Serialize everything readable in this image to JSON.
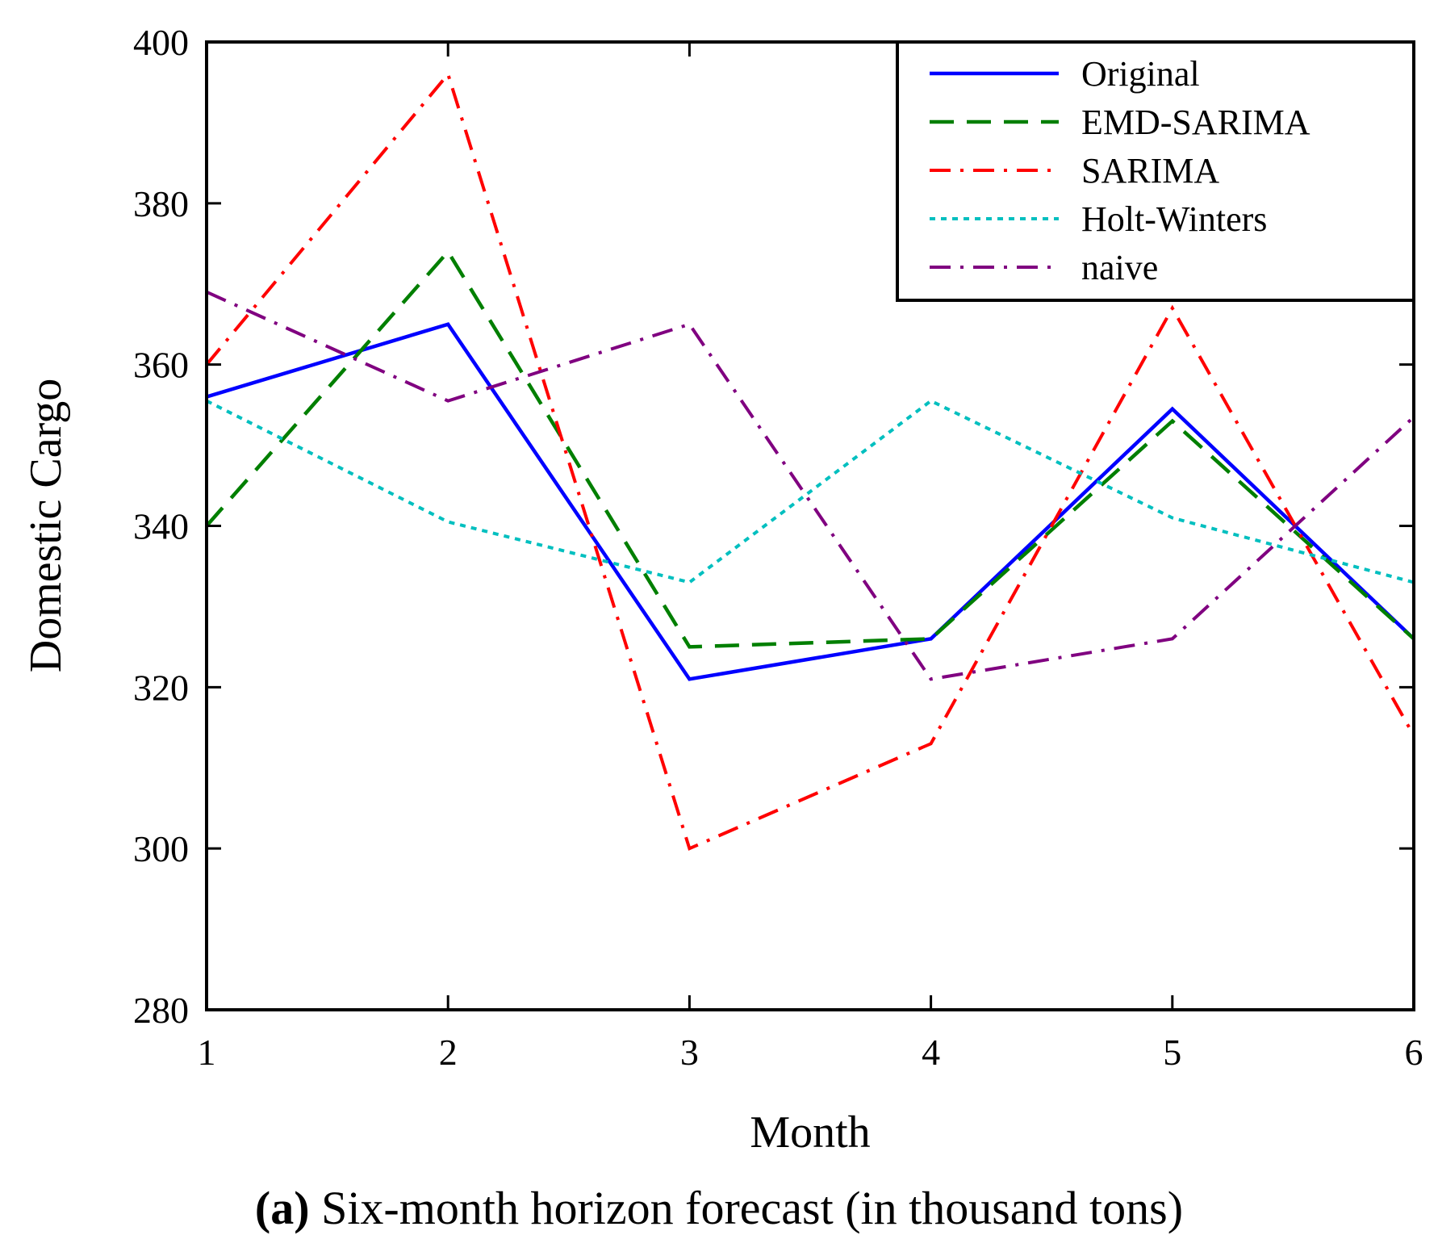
{
  "chart_data": {
    "type": "line",
    "title": "",
    "xlabel": "Month",
    "ylabel": "Domestic Cargo",
    "x": [
      1,
      2,
      3,
      4,
      5,
      6
    ],
    "xlim": [
      1,
      6
    ],
    "ylim": [
      280,
      400
    ],
    "xticks": [
      "1",
      "2",
      "3",
      "4",
      "5",
      "6"
    ],
    "yticks": [
      "280",
      "300",
      "320",
      "340",
      "360",
      "380",
      "400"
    ],
    "grid": false,
    "legend_position": "top-right",
    "series": [
      {
        "name": "Original",
        "color": "#0000ff",
        "style": "solid",
        "values": [
          356,
          365,
          321,
          326,
          354.5,
          326
        ]
      },
      {
        "name": "EMD-SARIMA",
        "color": "#007f00",
        "style": "dashed",
        "values": [
          340,
          374,
          325,
          326,
          353,
          326
        ]
      },
      {
        "name": "SARIMA",
        "color": "#ff0000",
        "style": "dashdot",
        "values": [
          360,
          396,
          300,
          313,
          367,
          314
        ]
      },
      {
        "name": "Holt-Winters",
        "color": "#00bfbf",
        "style": "dotted",
        "values": [
          355.5,
          340.5,
          333,
          355.5,
          341,
          333
        ]
      },
      {
        "name": "naive",
        "color": "#800080",
        "style": "dashdot",
        "values": [
          369,
          355.5,
          365,
          321,
          326,
          353.5
        ]
      }
    ],
    "caption_label": "(a)",
    "caption_text": " Six-month horizon forecast (in thousand tons)"
  }
}
